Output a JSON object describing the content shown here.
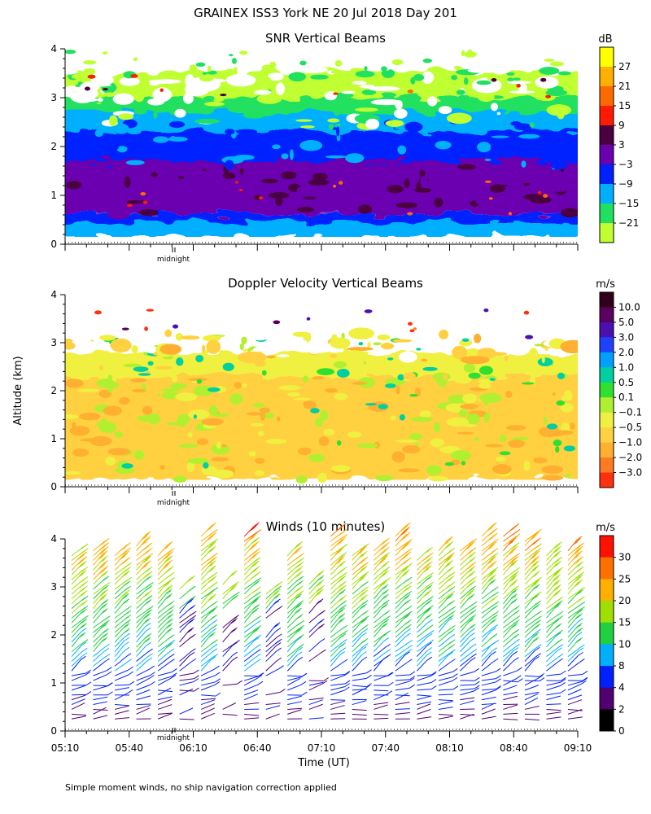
{
  "figure": {
    "title": "GRAINEX ISS3 York NE  20 Jul 2018 Day 201",
    "ylabel": "Altitude (km)",
    "xlabel": "Time (UT)",
    "footnote": "Simple moment winds, no ship navigation correction applied",
    "midnight_label": "midnight"
  },
  "chart_data": [
    {
      "type": "heatmap",
      "title": "SNR Vertical Beams",
      "ylim": [
        0,
        4
      ],
      "yticks": [
        "0",
        "1",
        "2",
        "3",
        "4"
      ],
      "colorbar": {
        "unit": "dB",
        "labels": [
          "27",
          "21",
          "15",
          "9",
          "3",
          "−3",
          "−9",
          "−15",
          "−21"
        ],
        "colors": [
          "#ffff00",
          "#ffb000",
          "#ff6a00",
          "#ff1a00",
          "#4a0040",
          "#6a00b0",
          "#0020ff",
          "#00b0ff",
          "#20e060",
          "#c0ff30"
        ]
      },
      "layers": [
        {
          "from_km": 0.15,
          "to_km": 0.45,
          "value": "−9 to −3"
        },
        {
          "from_km": 0.45,
          "to_km": 0.6,
          "value": "−3 to 3"
        },
        {
          "from_km": 0.6,
          "to_km": 1.7,
          "value": "3 to 9"
        },
        {
          "from_km": 1.7,
          "to_km": 2.3,
          "value": "−3 to 3"
        },
        {
          "from_km": 2.3,
          "to_km": 2.7,
          "value": "−9 to −3"
        },
        {
          "from_km": 2.7,
          "to_km": 3.0,
          "value": "−15 to −9"
        },
        {
          "from_km": 3.0,
          "to_km": 3.9,
          "value": "−21 to −15 (patchy)"
        }
      ]
    },
    {
      "type": "heatmap",
      "title": "Doppler Velocity Vertical Beams",
      "ylim": [
        0,
        4
      ],
      "yticks": [
        "0",
        "1",
        "2",
        "3",
        "4"
      ],
      "colorbar": {
        "unit": "m/s",
        "labels": [
          "10.0",
          "5.0",
          "3.0",
          "2.0",
          "1.0",
          "0.5",
          "0.1",
          "−0.1",
          "−0.5",
          "−1.0",
          "−2.0",
          "−3.0"
        ],
        "colors": [
          "#30001a",
          "#5a0060",
          "#4a10b0",
          "#2040ff",
          "#00a0ff",
          "#00d0a0",
          "#30e030",
          "#b0f030",
          "#f0f040",
          "#ffd040",
          "#ffb030",
          "#ff7a20",
          "#ff3010"
        ]
      },
      "layers": [
        {
          "from_km": 0.15,
          "to_km": 2.3,
          "value": "−0.5 to −1.0"
        },
        {
          "from_km": 2.3,
          "to_km": 2.9,
          "value": "−0.1 to −1.0 (patchy)"
        },
        {
          "from_km": 2.9,
          "to_km": 3.8,
          "value": "sparse mixed values"
        }
      ]
    },
    {
      "type": "wind_barbs",
      "title": "Winds (10 minutes)",
      "ylim": [
        0,
        4
      ],
      "yticks": [
        "0",
        "1",
        "2",
        "3",
        "4"
      ],
      "xticks": [
        "05:10",
        "05:40",
        "06:10",
        "06:40",
        "07:10",
        "07:40",
        "08:10",
        "08:40",
        "09:10"
      ],
      "profile_count": 24,
      "colorbar": {
        "unit": "m/s",
        "labels": [
          "30",
          "25",
          "20",
          "15",
          "10",
          "8",
          "4",
          "2",
          "0"
        ],
        "colors": [
          "#ff1000",
          "#ff7000",
          "#ffb000",
          "#a0e000",
          "#20d040",
          "#00b0ff",
          "#0020ff",
          "#500070",
          "#000000"
        ]
      },
      "speed_profile_mps": [
        {
          "altitude_km": 0.3,
          "speed": 3
        },
        {
          "altitude_km": 1.0,
          "speed": 6
        },
        {
          "altitude_km": 1.5,
          "speed": 9
        },
        {
          "altitude_km": 2.2,
          "speed": 12
        },
        {
          "altitude_km": 3.0,
          "speed": 17
        },
        {
          "altitude_km": 3.7,
          "speed": 22
        },
        {
          "altitude_km": 4.1,
          "speed": 27
        }
      ]
    }
  ]
}
